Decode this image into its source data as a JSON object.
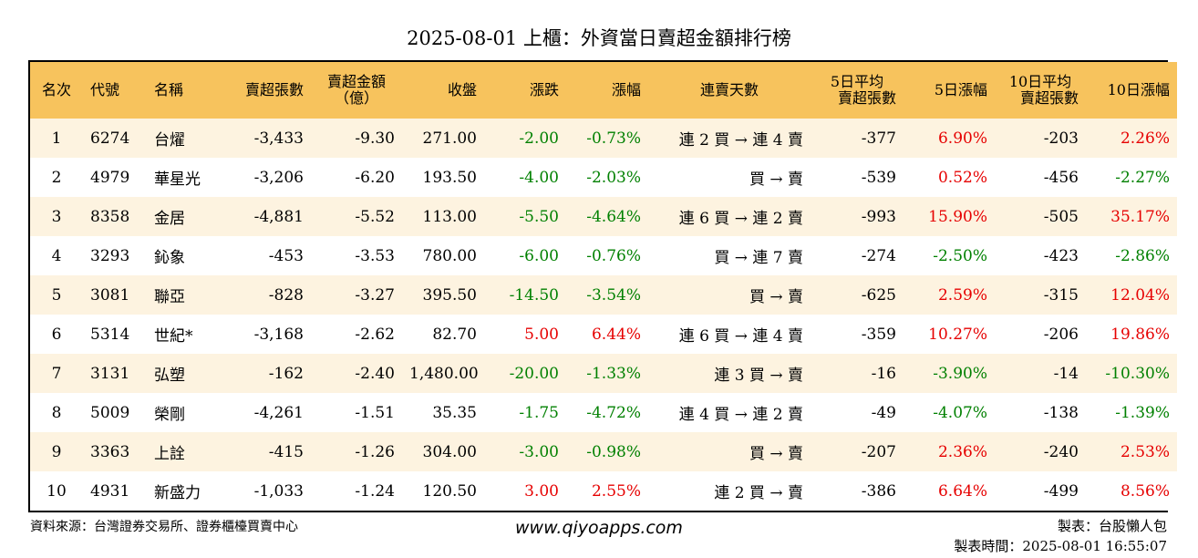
{
  "title": "2025-08-01 上櫃：外資當日賣超金額排行榜",
  "headers": {
    "rank": "名次",
    "code": "代號",
    "name": "名稱",
    "sell_volume": "賣超張數",
    "sell_amount_l1": "賣超金額",
    "sell_amount_l2": "（億）",
    "close": "收盤",
    "change": "漲跌",
    "change_pct": "漲幅",
    "streak": "連賣天數",
    "avg5_l1": "5日平均",
    "avg5_l2": "賣超張數",
    "pct5": "5日漲幅",
    "avg10_l1": "10日平均",
    "avg10_l2": "賣超張數",
    "pct10": "10日漲幅"
  },
  "rows": [
    {
      "rank": "1",
      "code": "6274",
      "name": "台燿",
      "sell_volume": "-3,433",
      "sell_amount": "-9.30",
      "close": "271.00",
      "change": "-2.00",
      "change_pct": "-0.73%",
      "streak": "連 2 買 → 連 4 賣",
      "avg5": "-377",
      "pct5": "6.90%",
      "avg10": "-203",
      "pct10": "2.26%"
    },
    {
      "rank": "2",
      "code": "4979",
      "name": "華星光",
      "sell_volume": "-3,206",
      "sell_amount": "-6.20",
      "close": "193.50",
      "change": "-4.00",
      "change_pct": "-2.03%",
      "streak": "買 → 賣",
      "avg5": "-539",
      "pct5": "0.52%",
      "avg10": "-456",
      "pct10": "-2.27%"
    },
    {
      "rank": "3",
      "code": "8358",
      "name": "金居",
      "sell_volume": "-4,881",
      "sell_amount": "-5.52",
      "close": "113.00",
      "change": "-5.50",
      "change_pct": "-4.64%",
      "streak": "連 6 買 → 連 2 賣",
      "avg5": "-993",
      "pct5": "15.90%",
      "avg10": "-505",
      "pct10": "35.17%"
    },
    {
      "rank": "4",
      "code": "3293",
      "name": "鈊象",
      "sell_volume": "-453",
      "sell_amount": "-3.53",
      "close": "780.00",
      "change": "-6.00",
      "change_pct": "-0.76%",
      "streak": "買 → 連 7 賣",
      "avg5": "-274",
      "pct5": "-2.50%",
      "avg10": "-423",
      "pct10": "-2.86%"
    },
    {
      "rank": "5",
      "code": "3081",
      "name": "聯亞",
      "sell_volume": "-828",
      "sell_amount": "-3.27",
      "close": "395.50",
      "change": "-14.50",
      "change_pct": "-3.54%",
      "streak": "買 → 賣",
      "avg5": "-625",
      "pct5": "2.59%",
      "avg10": "-315",
      "pct10": "12.04%"
    },
    {
      "rank": "6",
      "code": "5314",
      "name": "世紀*",
      "sell_volume": "-3,168",
      "sell_amount": "-2.62",
      "close": "82.70",
      "change": "5.00",
      "change_pct": "6.44%",
      "streak": "連 6 買 → 連 4 賣",
      "avg5": "-359",
      "pct5": "10.27%",
      "avg10": "-206",
      "pct10": "19.86%"
    },
    {
      "rank": "7",
      "code": "3131",
      "name": "弘塑",
      "sell_volume": "-162",
      "sell_amount": "-2.40",
      "close": "1,480.00",
      "change": "-20.00",
      "change_pct": "-1.33%",
      "streak": "連 3 買 → 賣",
      "avg5": "-16",
      "pct5": "-3.90%",
      "avg10": "-14",
      "pct10": "-10.30%"
    },
    {
      "rank": "8",
      "code": "5009",
      "name": "榮剛",
      "sell_volume": "-4,261",
      "sell_amount": "-1.51",
      "close": "35.35",
      "change": "-1.75",
      "change_pct": "-4.72%",
      "streak": "連 4 買 → 連 2 賣",
      "avg5": "-49",
      "pct5": "-4.07%",
      "avg10": "-138",
      "pct10": "-1.39%"
    },
    {
      "rank": "9",
      "code": "3363",
      "name": "上詮",
      "sell_volume": "-415",
      "sell_amount": "-1.26",
      "close": "304.00",
      "change": "-3.00",
      "change_pct": "-0.98%",
      "streak": "買 → 賣",
      "avg5": "-207",
      "pct5": "2.36%",
      "avg10": "-240",
      "pct10": "2.53%"
    },
    {
      "rank": "10",
      "code": "4931",
      "name": "新盛力",
      "sell_volume": "-1,033",
      "sell_amount": "-1.24",
      "close": "120.50",
      "change": "3.00",
      "change_pct": "2.55%",
      "streak": "連 2 買 → 賣",
      "avg5": "-386",
      "pct5": "6.64%",
      "avg10": "-499",
      "pct10": "8.56%"
    }
  ],
  "colors": {
    "header_bg": "#f7c35d",
    "stripe_bg": "#fdf3e0",
    "up": "#e60000",
    "down": "#008000"
  },
  "footer": {
    "source": "資料來源：台灣證券交易所、證券櫃檯買賣中心",
    "website": "www.qiyoapps.com",
    "author": "製表：台股懶人包",
    "timestamp": "製表時間：2025-08-01 16:55:07"
  }
}
